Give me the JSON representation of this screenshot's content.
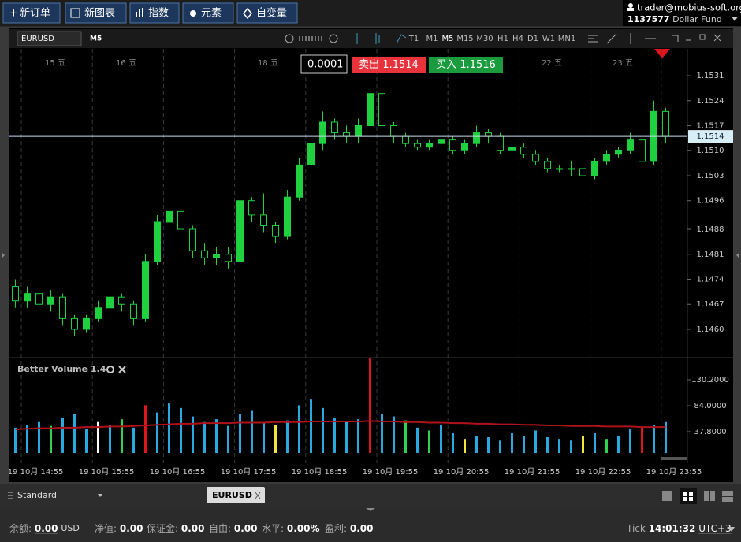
{
  "toolbar": {
    "buttons": [
      "新订单",
      "新图表",
      "指数",
      "元素",
      "自变量"
    ],
    "user": "trader@mobius-soft.org",
    "account": "1137577",
    "fund": "Dollar Fund"
  },
  "chart_window": {
    "symbol": "EURUSD",
    "timeframe": "M5",
    "timeframes": [
      "T1",
      "M1",
      "M5",
      "M15",
      "M30",
      "H1",
      "H4",
      "D1",
      "W1",
      "MN1"
    ],
    "spread": "0.0001",
    "sell_label": "卖出",
    "sell_price": "1.1514",
    "buy_label": "买入",
    "buy_price": "1.1516",
    "date_labels": [
      "15 五",
      "16 五",
      "18 五",
      "22 五",
      "23 五"
    ]
  },
  "chart_data": [
    {
      "type": "candlestick",
      "color": "#1fd13f",
      "open": [
        1.1472,
        1.1468,
        1.147,
        1.1467,
        1.1469,
        1.1463,
        1.146,
        1.1463,
        1.1466,
        1.1469,
        1.1467,
        1.1463,
        1.1479,
        1.149,
        1.1493,
        1.1488,
        1.1482,
        1.148,
        1.1481,
        1.1479,
        1.1496,
        1.1492,
        1.1489,
        1.1486,
        1.1497,
        1.1506,
        1.1512,
        1.1518,
        1.1515,
        1.1514,
        1.1517,
        1.1526,
        1.1517,
        1.1514,
        1.1512,
        1.1511,
        1.1512,
        1.1513,
        1.151,
        1.1512,
        1.1515,
        1.1514,
        1.151,
        1.1511,
        1.1509,
        1.1507,
        1.1505,
        1.1505,
        1.1505,
        1.1503,
        1.1507,
        1.1509,
        1.151,
        1.1513,
        1.1507,
        1.1521
      ],
      "high": [
        1.1474,
        1.1472,
        1.1471,
        1.1471,
        1.147,
        1.1464,
        1.1464,
        1.1468,
        1.1471,
        1.147,
        1.1468,
        1.1481,
        1.1492,
        1.1495,
        1.1494,
        1.1489,
        1.1484,
        1.1483,
        1.1483,
        1.1497,
        1.1497,
        1.1498,
        1.149,
        1.1499,
        1.1508,
        1.1514,
        1.1521,
        1.1519,
        1.1517,
        1.1519,
        1.1532,
        1.1527,
        1.1518,
        1.1515,
        1.1513,
        1.1513,
        1.1514,
        1.1514,
        1.1513,
        1.1517,
        1.1516,
        1.1515,
        1.1513,
        1.1512,
        1.151,
        1.1508,
        1.1506,
        1.1507,
        1.1506,
        1.1508,
        1.151,
        1.1511,
        1.1515,
        1.1514,
        1.1524,
        1.1522
      ],
      "low": [
        1.1466,
        1.1466,
        1.1465,
        1.1465,
        1.1461,
        1.1458,
        1.1459,
        1.1462,
        1.1465,
        1.1465,
        1.1461,
        1.1462,
        1.1478,
        1.1488,
        1.1486,
        1.148,
        1.1478,
        1.1478,
        1.1477,
        1.1478,
        1.149,
        1.1487,
        1.1484,
        1.1485,
        1.1496,
        1.1505,
        1.151,
        1.1513,
        1.1512,
        1.1512,
        1.1515,
        1.1515,
        1.1512,
        1.1511,
        1.151,
        1.151,
        1.151,
        1.1509,
        1.1509,
        1.1511,
        1.1512,
        1.1509,
        1.1509,
        1.1508,
        1.1506,
        1.1504,
        1.1504,
        1.1503,
        1.1502,
        1.1502,
        1.1506,
        1.1508,
        1.1509,
        1.1505,
        1.1506,
        1.1512
      ],
      "close": [
        1.1468,
        1.147,
        1.1467,
        1.1469,
        1.1463,
        1.146,
        1.1463,
        1.1466,
        1.1469,
        1.1467,
        1.1463,
        1.1479,
        1.149,
        1.1493,
        1.1488,
        1.1482,
        1.148,
        1.1481,
        1.1479,
        1.1496,
        1.1492,
        1.1489,
        1.1486,
        1.1497,
        1.1506,
        1.1512,
        1.1518,
        1.1515,
        1.1514,
        1.1517,
        1.1526,
        1.1517,
        1.1514,
        1.1512,
        1.1511,
        1.1512,
        1.1513,
        1.151,
        1.1512,
        1.1515,
        1.1514,
        1.151,
        1.1511,
        1.1509,
        1.1507,
        1.1505,
        1.1505,
        1.1505,
        1.1503,
        1.1507,
        1.1509,
        1.151,
        1.1513,
        1.1507,
        1.1521,
        1.1514
      ],
      "current_price": 1.1514,
      "ylim": [
        1.14525,
        1.15385
      ],
      "yticks": [
        1.1531,
        1.1524,
        1.1517,
        {
          "value": 1.151,
          "label": "1.1510"
        },
        1.1503,
        1.1496,
        1.1488,
        1.1481,
        1.1474,
        1.1467,
        {
          "value": 1.146,
          "label": "1.1460"
        }
      ]
    },
    {
      "type": "bar",
      "title": "Better Volume 1.4",
      "values": [
        45,
        50,
        55,
        48,
        62,
        70,
        42,
        55,
        50,
        60,
        45,
        85,
        72,
        88,
        80,
        65,
        55,
        60,
        48,
        70,
        75,
        55,
        50,
        58,
        85,
        95,
        80,
        62,
        55,
        60,
        168,
        70,
        65,
        58,
        45,
        40,
        50,
        35,
        25,
        30,
        28,
        22,
        35,
        30,
        40,
        28,
        25,
        22,
        30,
        35,
        25,
        30,
        42,
        45,
        50,
        55
      ],
      "bar_colors": [
        "#29a9e1",
        "#29a9e1",
        "#29a9e1",
        "#2fd34e",
        "#29a9e1",
        "#29a9e1",
        "#29a9e1",
        "#ffffff",
        "#29a9e1",
        "#2fd34e",
        "#29a9e1",
        "#e0161d",
        "#29a9e1",
        "#29a9e1",
        "#29a9e1",
        "#29a9e1",
        "#29a9e1",
        "#29a9e1",
        "#29a9e1",
        "#29a9e1",
        "#29a9e1",
        "#29a9e1",
        "#f3e33a",
        "#29a9e1",
        "#29a9e1",
        "#29a9e1",
        "#29a9e1",
        "#29a9e1",
        "#29a9e1",
        "#29a9e1",
        "#e0161d",
        "#29a9e1",
        "#29a9e1",
        "#2fd34e",
        "#29a9e1",
        "#2fd34e",
        "#29a9e1",
        "#29a9e1",
        "#f3e33a",
        "#29a9e1",
        "#29a9e1",
        "#29a9e1",
        "#29a9e1",
        "#29a9e1",
        "#29a9e1",
        "#29a9e1",
        "#29a9e1",
        "#29a9e1",
        "#f3e33a",
        "#29a9e1",
        "#2fd34e",
        "#29a9e1",
        "#29a9e1",
        "#e0161d",
        "#29a9e1",
        "#29a9e1"
      ],
      "average": [
        42,
        43,
        44,
        44,
        45,
        45,
        46,
        46,
        47,
        47,
        48,
        49,
        50,
        51,
        52,
        52,
        53,
        53,
        53,
        54,
        54,
        54,
        55,
        55,
        55,
        56,
        56,
        56,
        56,
        56,
        57,
        56,
        56,
        55,
        55,
        54,
        54,
        53,
        53,
        52,
        52,
        51,
        51,
        50,
        50,
        49,
        49,
        48,
        48,
        48,
        47,
        47,
        47,
        46,
        46,
        46
      ],
      "average_color": "#b0121a",
      "ylim": [
        0,
        170
      ],
      "yticks": [
        {
          "value": 130.2,
          "label": "130.2000"
        },
        {
          "value": 84,
          "label": "84.0000"
        },
        {
          "value": 37.8,
          "label": "37.8000"
        }
      ],
      "x_labels": [
        "19 10月 14:55",
        "19 10月 15:55",
        "19 10月 16:55",
        "19 10月 17:55",
        "19 10月 18:55",
        "19 10月 19:55",
        "19 10月 20:55",
        "19 10月 21:55",
        "19 10月 22:55",
        "19 10月 23:55"
      ]
    }
  ],
  "bottom_tabs": {
    "profile": "Standard",
    "tab": "EURUSD"
  },
  "status": {
    "balance_label": "余额:",
    "balance": "0.00",
    "currency": "USD",
    "items": [
      {
        "label": "净值:",
        "value": "0.00"
      },
      {
        "label": "保证金:",
        "value": "0.00"
      },
      {
        "label": "自由:",
        "value": "0.00"
      },
      {
        "label": "水平:",
        "value": "0.00%"
      },
      {
        "label": "盈利:",
        "value": "0.00"
      }
    ],
    "tick_label": "Tick",
    "time": "14:01:32",
    "timezone": "UTC+3"
  }
}
